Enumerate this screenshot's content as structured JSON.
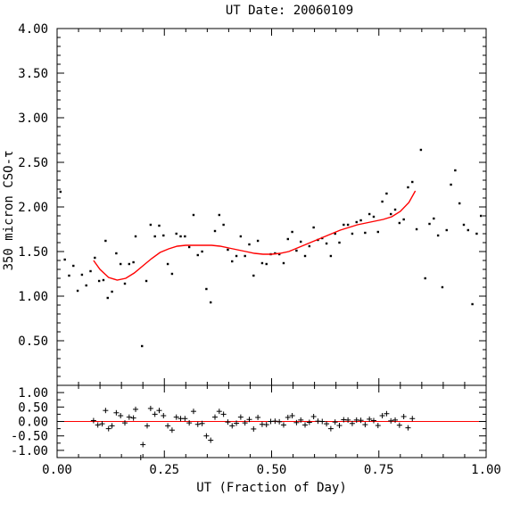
{
  "chart_data": [
    {
      "panel": "top",
      "type": "scatter",
      "title": "UT Date: 20060109",
      "xlabel": "",
      "ylabel": "350 micron CSO-τ",
      "xlim": [
        0.0,
        1.0
      ],
      "ylim": [
        0.0,
        4.0
      ],
      "yticks": [
        0.5,
        1.0,
        1.5,
        2.0,
        2.5,
        3.0,
        3.5,
        4.0
      ],
      "ytick_labels": [
        "0.50",
        "1.00",
        "1.50",
        "2.00",
        "2.50",
        "3.00",
        "3.50",
        "4.00"
      ],
      "x_tick_labels_shown": false,
      "series": [
        {
          "marker": "dot",
          "color": "#000000",
          "points": [
            [
              0.008,
              2.17
            ],
            [
              0.018,
              1.41
            ],
            [
              0.028,
              1.23
            ],
            [
              0.038,
              1.34
            ],
            [
              0.048,
              1.06
            ],
            [
              0.058,
              1.24
            ],
            [
              0.068,
              1.12
            ],
            [
              0.078,
              1.28
            ],
            [
              0.088,
              1.43
            ],
            [
              0.098,
              1.17
            ],
            [
              0.108,
              1.18
            ],
            [
              0.113,
              1.62
            ],
            [
              0.118,
              0.98
            ],
            [
              0.128,
              1.05
            ],
            [
              0.138,
              1.48
            ],
            [
              0.148,
              1.36
            ],
            [
              0.158,
              1.14
            ],
            [
              0.168,
              1.36
            ],
            [
              0.178,
              1.38
            ],
            [
              0.183,
              1.67
            ],
            [
              0.198,
              0.44
            ],
            [
              0.208,
              1.17
            ],
            [
              0.218,
              1.8
            ],
            [
              0.228,
              1.67
            ],
            [
              0.238,
              1.79
            ],
            [
              0.248,
              1.68
            ],
            [
              0.258,
              1.36
            ],
            [
              0.268,
              1.25
            ],
            [
              0.278,
              1.7
            ],
            [
              0.288,
              1.67
            ],
            [
              0.298,
              1.67
            ],
            [
              0.308,
              1.55
            ],
            [
              0.318,
              1.91
            ],
            [
              0.328,
              1.46
            ],
            [
              0.338,
              1.5
            ],
            [
              0.348,
              1.08
            ],
            [
              0.358,
              0.93
            ],
            [
              0.368,
              1.73
            ],
            [
              0.378,
              1.91
            ],
            [
              0.388,
              1.8
            ],
            [
              0.398,
              1.52
            ],
            [
              0.408,
              1.39
            ],
            [
              0.418,
              1.45
            ],
            [
              0.428,
              1.67
            ],
            [
              0.438,
              1.45
            ],
            [
              0.448,
              1.58
            ],
            [
              0.458,
              1.23
            ],
            [
              0.468,
              1.62
            ],
            [
              0.478,
              1.37
            ],
            [
              0.488,
              1.36
            ],
            [
              0.498,
              1.47
            ],
            [
              0.508,
              1.48
            ],
            [
              0.518,
              1.47
            ],
            [
              0.528,
              1.37
            ],
            [
              0.538,
              1.64
            ],
            [
              0.548,
              1.72
            ],
            [
              0.558,
              1.51
            ],
            [
              0.568,
              1.61
            ],
            [
              0.578,
              1.45
            ],
            [
              0.588,
              1.56
            ],
            [
              0.598,
              1.77
            ],
            [
              0.608,
              1.63
            ],
            [
              0.618,
              1.65
            ],
            [
              0.628,
              1.59
            ],
            [
              0.638,
              1.45
            ],
            [
              0.648,
              1.7
            ],
            [
              0.658,
              1.6
            ],
            [
              0.668,
              1.8
            ],
            [
              0.678,
              1.8
            ],
            [
              0.688,
              1.7
            ],
            [
              0.698,
              1.83
            ],
            [
              0.708,
              1.85
            ],
            [
              0.718,
              1.71
            ],
            [
              0.728,
              1.92
            ],
            [
              0.738,
              1.89
            ],
            [
              0.748,
              1.72
            ],
            [
              0.758,
              2.06
            ],
            [
              0.768,
              2.15
            ],
            [
              0.778,
              1.92
            ],
            [
              0.788,
              1.97
            ],
            [
              0.798,
              1.82
            ],
            [
              0.808,
              1.86
            ],
            [
              0.818,
              2.22
            ],
            [
              0.828,
              2.28
            ],
            [
              0.838,
              1.75
            ],
            [
              0.848,
              2.64
            ],
            [
              0.858,
              1.2
            ],
            [
              0.868,
              1.81
            ],
            [
              0.878,
              1.87
            ],
            [
              0.888,
              1.68
            ],
            [
              0.898,
              1.1
            ],
            [
              0.908,
              1.74
            ],
            [
              0.918,
              2.25
            ],
            [
              0.928,
              2.41
            ],
            [
              0.938,
              2.04
            ],
            [
              0.948,
              1.8
            ],
            [
              0.958,
              1.74
            ],
            [
              0.968,
              0.91
            ],
            [
              0.978,
              1.7
            ],
            [
              0.988,
              1.9
            ]
          ]
        },
        {
          "marker": "line",
          "color": "#ff0000",
          "points": [
            [
              0.085,
              1.4
            ],
            [
              0.1,
              1.3
            ],
            [
              0.12,
              1.21
            ],
            [
              0.14,
              1.18
            ],
            [
              0.16,
              1.2
            ],
            [
              0.18,
              1.26
            ],
            [
              0.2,
              1.34
            ],
            [
              0.22,
              1.42
            ],
            [
              0.24,
              1.49
            ],
            [
              0.26,
              1.53
            ],
            [
              0.28,
              1.56
            ],
            [
              0.3,
              1.57
            ],
            [
              0.32,
              1.57
            ],
            [
              0.34,
              1.57
            ],
            [
              0.36,
              1.57
            ],
            [
              0.38,
              1.56
            ],
            [
              0.4,
              1.54
            ],
            [
              0.42,
              1.52
            ],
            [
              0.44,
              1.5
            ],
            [
              0.46,
              1.48
            ],
            [
              0.48,
              1.47
            ],
            [
              0.5,
              1.47
            ],
            [
              0.52,
              1.48
            ],
            [
              0.54,
              1.5
            ],
            [
              0.56,
              1.54
            ],
            [
              0.58,
              1.58
            ],
            [
              0.6,
              1.62
            ],
            [
              0.62,
              1.66
            ],
            [
              0.64,
              1.7
            ],
            [
              0.66,
              1.74
            ],
            [
              0.68,
              1.77
            ],
            [
              0.7,
              1.8
            ],
            [
              0.72,
              1.82
            ],
            [
              0.74,
              1.84
            ],
            [
              0.76,
              1.86
            ],
            [
              0.78,
              1.89
            ],
            [
              0.8,
              1.95
            ],
            [
              0.82,
              2.05
            ],
            [
              0.835,
              2.18
            ]
          ]
        }
      ]
    },
    {
      "panel": "bottom",
      "type": "scatter",
      "title": "",
      "xlabel": "UT (Fraction of Day)",
      "ylabel": "",
      "xlim": [
        0.0,
        1.0
      ],
      "ylim": [
        -1.25,
        1.25
      ],
      "xticks": [
        0.0,
        0.25,
        0.5,
        0.75,
        1.0
      ],
      "xtick_labels": [
        "0.00",
        "0.25",
        "0.50",
        "0.75",
        "1.00"
      ],
      "yticks": [
        -1.0,
        -0.5,
        0.0,
        0.5,
        1.0
      ],
      "ytick_labels": [
        "-1.00",
        "-0.50",
        "0.00",
        "0.50",
        "1.00"
      ],
      "reference_line": {
        "y": 0.0,
        "color": "#ff0000"
      },
      "series": [
        {
          "marker": "plus",
          "color": "#000000",
          "points": [
            [
              0.085,
              0.03
            ],
            [
              0.095,
              -0.12
            ],
            [
              0.105,
              -0.08
            ],
            [
              0.113,
              0.38
            ],
            [
              0.12,
              -0.25
            ],
            [
              0.128,
              -0.15
            ],
            [
              0.138,
              0.3
            ],
            [
              0.148,
              0.2
            ],
            [
              0.158,
              -0.05
            ],
            [
              0.168,
              0.15
            ],
            [
              0.178,
              0.12
            ],
            [
              0.183,
              0.42
            ],
            [
              0.195,
              -1.3
            ],
            [
              0.2,
              -0.8
            ],
            [
              0.21,
              -0.15
            ],
            [
              0.218,
              0.45
            ],
            [
              0.228,
              0.25
            ],
            [
              0.238,
              0.38
            ],
            [
              0.248,
              0.2
            ],
            [
              0.258,
              -0.15
            ],
            [
              0.268,
              -0.3
            ],
            [
              0.278,
              0.15
            ],
            [
              0.288,
              0.1
            ],
            [
              0.298,
              0.1
            ],
            [
              0.308,
              -0.05
            ],
            [
              0.318,
              0.35
            ],
            [
              0.328,
              -0.1
            ],
            [
              0.338,
              -0.07
            ],
            [
              0.348,
              -0.5
            ],
            [
              0.358,
              -0.65
            ],
            [
              0.368,
              0.15
            ],
            [
              0.378,
              0.35
            ],
            [
              0.388,
              0.25
            ],
            [
              0.398,
              -0.02
            ],
            [
              0.408,
              -0.15
            ],
            [
              0.418,
              -0.06
            ],
            [
              0.428,
              0.15
            ],
            [
              0.438,
              -0.05
            ],
            [
              0.448,
              0.07
            ],
            [
              0.458,
              -0.26
            ],
            [
              0.468,
              0.14
            ],
            [
              0.478,
              -0.1
            ],
            [
              0.488,
              -0.11
            ],
            [
              0.498,
              0.0
            ],
            [
              0.508,
              0.01
            ],
            [
              0.518,
              -0.01
            ],
            [
              0.528,
              -0.12
            ],
            [
              0.538,
              0.14
            ],
            [
              0.548,
              0.2
            ],
            [
              0.558,
              -0.04
            ],
            [
              0.568,
              0.05
            ],
            [
              0.578,
              -0.12
            ],
            [
              0.588,
              -0.03
            ],
            [
              0.598,
              0.17
            ],
            [
              0.608,
              0.01
            ],
            [
              0.618,
              0.0
            ],
            [
              0.628,
              -0.08
            ],
            [
              0.638,
              -0.25
            ],
            [
              0.648,
              -0.02
            ],
            [
              0.658,
              -0.14
            ],
            [
              0.668,
              0.06
            ],
            [
              0.678,
              0.05
            ],
            [
              0.688,
              -0.07
            ],
            [
              0.698,
              0.05
            ],
            [
              0.708,
              0.04
            ],
            [
              0.718,
              -0.11
            ],
            [
              0.728,
              0.08
            ],
            [
              0.738,
              0.03
            ],
            [
              0.748,
              -0.14
            ],
            [
              0.758,
              0.2
            ],
            [
              0.768,
              0.27
            ],
            [
              0.778,
              0.02
            ],
            [
              0.788,
              0.05
            ],
            [
              0.798,
              -0.13
            ],
            [
              0.808,
              0.17
            ],
            [
              0.818,
              -0.22
            ],
            [
              0.828,
              0.1
            ]
          ]
        }
      ]
    }
  ]
}
